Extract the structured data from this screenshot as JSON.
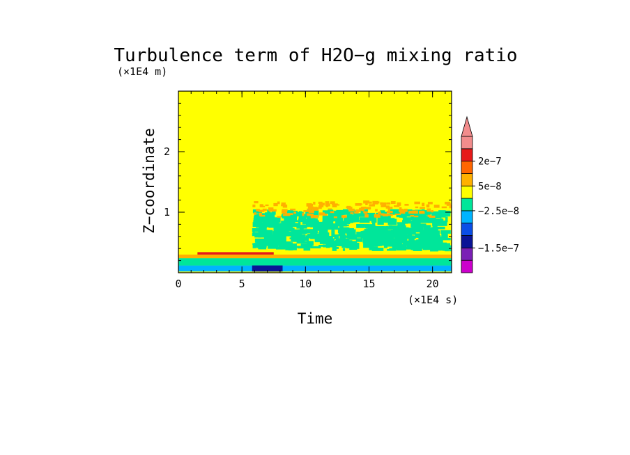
{
  "chart_data": {
    "type": "heatmap",
    "title": "Turbulence term of H2O−g mixing ratio",
    "ylabel": "Z−coordinate",
    "xlabel": "Time",
    "y_unit": "(×1E4 m)",
    "x_unit": "(×1E4 s)",
    "xlim": [
      0,
      21.5
    ],
    "ylim": [
      0,
      3
    ],
    "x_ticks": [
      "0",
      "5",
      "10",
      "15",
      "20"
    ],
    "x_tick_values": [
      0,
      5,
      10,
      15,
      20
    ],
    "y_ticks": [
      "1",
      "2"
    ],
    "y_tick_values": [
      1,
      2
    ],
    "background_level": "yellow",
    "colorbar": {
      "colors_bottom_to_top": [
        "#cc00cc",
        "#7a1fb5",
        "#0a1496",
        "#0a4ee6",
        "#00b4ff",
        "#00e69a",
        "#ffff00",
        "#ffb000",
        "#ff6600",
        "#e61a1a",
        "#f28c8c"
      ],
      "labels": [
        "2e−7",
        "5e−8",
        "−2.5e−8",
        "−1.5e−7"
      ],
      "label_values": [
        2e-07,
        5e-08,
        -2.5e-08,
        -1.5e-07
      ],
      "extend": "max"
    },
    "regions": [
      {
        "x": [
          0,
          21.5
        ],
        "y": [
          0.02,
          0.12
        ],
        "color": "#00b4ff"
      },
      {
        "x": [
          0,
          21.5
        ],
        "y": [
          0.12,
          0.24
        ],
        "color": "#00e69a"
      },
      {
        "x": [
          0,
          21.5
        ],
        "y": [
          0.24,
          0.3
        ],
        "color": "#ffb000"
      },
      {
        "x": [
          1.5,
          7.5
        ],
        "y": [
          0.3,
          0.34
        ],
        "color": "#e61a1a"
      },
      {
        "x": [
          5.8,
          8.2
        ],
        "y": [
          0.02,
          0.12
        ],
        "color": "#0a1496"
      },
      {
        "x": [
          5.8,
          21.5
        ],
        "y": [
          0.35,
          1.05
        ],
        "color": "#00e69a",
        "pattern": "patchy"
      },
      {
        "x": [
          5.8,
          21.5
        ],
        "y": [
          0.9,
          1.2
        ],
        "color": "#ffb000",
        "pattern": "sparse"
      }
    ]
  }
}
